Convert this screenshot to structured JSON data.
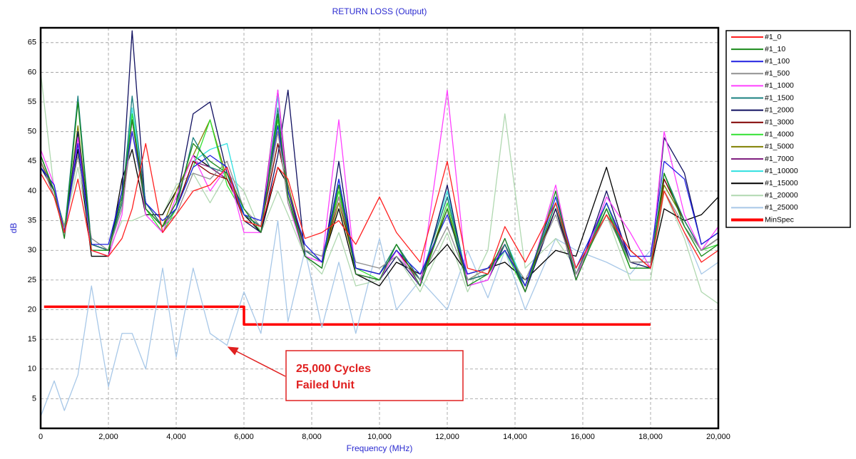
{
  "chart_data": {
    "type": "line",
    "title": "RETURN LOSS (Output)",
    "xlabel": "Frequency (MHz)",
    "ylabel": "dB",
    "xlim": [
      0,
      20000
    ],
    "ylim": [
      0,
      67.5
    ],
    "xticks": [
      0,
      {
        "value": 2000,
        "label": "2,000"
      },
      {
        "value": 4000,
        "label": "4,000"
      },
      {
        "value": 6000,
        "label": "6,000"
      },
      {
        "value": 8000,
        "label": "8,000"
      },
      {
        "value": 10000,
        "label": "10,000"
      },
      {
        "value": 12000,
        "label": "12,000"
      },
      {
        "value": 14000,
        "label": "14,000"
      },
      {
        "value": 16000,
        "label": "16,000"
      },
      {
        "value": 18000,
        "label": "18,000"
      },
      {
        "value": 20000,
        "label": "20,000"
      }
    ],
    "yticks": [
      5,
      10,
      15,
      20,
      25,
      30,
      35,
      40,
      45,
      50,
      55,
      60,
      65
    ],
    "grid": true,
    "legend": "right",
    "annotation": [
      "25,000 Cycles",
      "Failed Unit"
    ],
    "x": [
      0,
      400,
      700,
      1100,
      1500,
      2000,
      2400,
      2700,
      3100,
      3600,
      4000,
      4500,
      5000,
      5500,
      6000,
      6500,
      7000,
      7300,
      7800,
      8300,
      8800,
      9300,
      10000,
      10500,
      11200,
      12000,
      12600,
      13200,
      13700,
      14300,
      15200,
      15800,
      16700,
      17400,
      18000,
      18400,
      19000,
      19500,
      20000
    ],
    "series": [
      {
        "name": "#1_0",
        "color": "#ff2020",
        "values": [
          43,
          39,
          33,
          42,
          30,
          29,
          32,
          37,
          48,
          33,
          36,
          40,
          41,
          44,
          35,
          34,
          44,
          42,
          32,
          33,
          35,
          31,
          39,
          33,
          28,
          45,
          27,
          26,
          34,
          28,
          38,
          27,
          36,
          30,
          27,
          40,
          33,
          28,
          30
        ]
      },
      {
        "name": "#1_10",
        "color": "#1a8a1a",
        "values": [
          46,
          40,
          32,
          55,
          30,
          30,
          39,
          52,
          37,
          34,
          38,
          48,
          45,
          43,
          37,
          33,
          53,
          39,
          29,
          27,
          41,
          26,
          25,
          31,
          24,
          37,
          24,
          26,
          32,
          23,
          40,
          25,
          37,
          27,
          27,
          43,
          34,
          29,
          31
        ]
      },
      {
        "name": "#1_100",
        "color": "#2020e0",
        "values": [
          44,
          41,
          33,
          48,
          31,
          31,
          40,
          50,
          38,
          35,
          37,
          44,
          46,
          44,
          36,
          35,
          51,
          40,
          31,
          28,
          42,
          27,
          26,
          30,
          26,
          36,
          26,
          27,
          30,
          24,
          39,
          27,
          38,
          29,
          29,
          45,
          42,
          31,
          33
        ]
      },
      {
        "name": "#1_500",
        "color": "#909090",
        "values": [
          45,
          39,
          34,
          46,
          32,
          30,
          37,
          50,
          37,
          34,
          36,
          43,
          42,
          45,
          37,
          34,
          50,
          38,
          30,
          29,
          39,
          28,
          27,
          29,
          25,
          34,
          25,
          27,
          30,
          25,
          36,
          26,
          36,
          28,
          28,
          40,
          34,
          30,
          32
        ]
      },
      {
        "name": "#1_1000",
        "color": "#ff40ff",
        "values": [
          47,
          41,
          32,
          49,
          30,
          29,
          36,
          52,
          36,
          33,
          39,
          46,
          40,
          44,
          33,
          33,
          57,
          38,
          29,
          28,
          52,
          26,
          25,
          30,
          24,
          57,
          24,
          25,
          32,
          23,
          41,
          25,
          39,
          33,
          27,
          50,
          36,
          30,
          34
        ]
      },
      {
        "name": "#1_1500",
        "color": "#1a8080",
        "values": [
          46,
          40,
          33,
          56,
          31,
          30,
          38,
          56,
          38,
          34,
          37,
          49,
          44,
          43,
          36,
          34,
          54,
          39,
          30,
          28,
          41,
          27,
          26,
          31,
          25,
          39,
          25,
          26,
          31,
          24,
          38,
          26,
          37,
          28,
          28,
          43,
          35,
          30,
          32
        ]
      },
      {
        "name": "#1_2000",
        "color": "#101060",
        "values": [
          44,
          40,
          33,
          50,
          31,
          30,
          40,
          67,
          37,
          34,
          38,
          53,
          55,
          43,
          35,
          33,
          46,
          57,
          29,
          27,
          45,
          26,
          25,
          29,
          24,
          41,
          24,
          25,
          31,
          23,
          37,
          25,
          40,
          28,
          27,
          49,
          43,
          31,
          33
        ]
      },
      {
        "name": "#1_3000",
        "color": "#800000",
        "values": [
          45,
          39,
          33,
          49,
          31,
          30,
          38,
          52,
          38,
          34,
          37,
          45,
          43,
          42,
          36,
          34,
          48,
          40,
          30,
          28,
          39,
          27,
          26,
          30,
          25,
          37,
          25,
          26,
          31,
          24,
          37,
          26,
          37,
          28,
          28,
          42,
          35,
          30,
          32
        ]
      },
      {
        "name": "#1_4000",
        "color": "#30e030",
        "values": [
          44,
          40,
          34,
          50,
          30,
          30,
          38,
          53,
          37,
          33,
          37,
          44,
          52,
          41,
          36,
          34,
          52,
          40,
          30,
          28,
          40,
          27,
          25,
          30,
          24,
          38,
          25,
          26,
          30,
          23,
          38,
          25,
          38,
          27,
          27,
          43,
          34,
          30,
          31
        ]
      },
      {
        "name": "#1_5000",
        "color": "#808000",
        "values": [
          45,
          40,
          33,
          51,
          31,
          30,
          38,
          52,
          38,
          34,
          40,
          46,
          52,
          42,
          36,
          34,
          50,
          41,
          30,
          28,
          38,
          27,
          26,
          31,
          25,
          37,
          25,
          27,
          31,
          24,
          37,
          26,
          36,
          28,
          28,
          41,
          35,
          30,
          32
        ]
      },
      {
        "name": "#1_7000",
        "color": "#802080",
        "values": [
          46,
          40,
          33,
          50,
          31,
          30,
          38,
          52,
          38,
          34,
          37,
          45,
          44,
          42,
          36,
          34,
          57,
          40,
          30,
          28,
          41,
          27,
          26,
          30,
          25,
          39,
          25,
          26,
          31,
          24,
          38,
          26,
          38,
          28,
          28,
          42,
          35,
          30,
          32
        ]
      },
      {
        "name": "#1_10000",
        "color": "#30e0e0",
        "values": [
          44,
          40,
          33,
          48,
          30,
          30,
          38,
          54,
          38,
          34,
          37,
          45,
          47,
          48,
          36,
          34,
          56,
          40,
          30,
          28,
          42,
          27,
          26,
          31,
          25,
          40,
          25,
          26,
          32,
          24,
          39,
          26,
          38,
          28,
          28,
          41,
          35,
          30,
          32
        ]
      },
      {
        "name": "#1_15000",
        "color": "#000000",
        "values": [
          45,
          40,
          34,
          47,
          29,
          29,
          42,
          47,
          36,
          36,
          40,
          46,
          44,
          42,
          36,
          33,
          44,
          41,
          30,
          28,
          37,
          26,
          24,
          28,
          26,
          31,
          26,
          27,
          28,
          25,
          30,
          29,
          44,
          30,
          27,
          37,
          35,
          36,
          39
        ]
      },
      {
        "name": "#1_20000",
        "color": "#b0d8b0",
        "values": [
          60,
          40,
          34,
          44,
          31,
          30,
          35,
          35,
          36,
          36,
          41,
          43,
          38,
          43,
          40,
          33,
          40,
          36,
          29,
          26,
          33,
          24,
          25,
          29,
          23,
          33,
          23,
          30,
          53,
          27,
          32,
          27,
          36,
          25,
          25,
          40,
          32,
          23,
          21
        ]
      },
      {
        "name": "#1_25000",
        "color": "#a8c8e8",
        "values": [
          2,
          8,
          3,
          9,
          24,
          7,
          16,
          16,
          10,
          27,
          12,
          27,
          16,
          14,
          23,
          16,
          35,
          18,
          30,
          17,
          28,
          16,
          32,
          20,
          25,
          20,
          30,
          22,
          30,
          20,
          32,
          30,
          28,
          26,
          30,
          40,
          33,
          26,
          28
        ]
      },
      {
        "name": "MinSpec",
        "color": "#ff0000",
        "x": [
          100,
          6000,
          6000,
          18000
        ],
        "values": [
          20.5,
          20.5,
          17.5,
          17.5
        ]
      }
    ]
  }
}
